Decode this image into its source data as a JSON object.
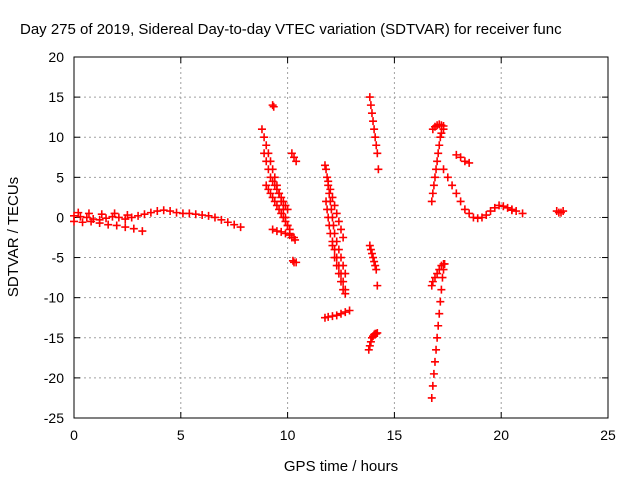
{
  "chart_data": {
    "type": "scatter",
    "title": "Day 275 of 2019, Sidereal Day-to-day VTEC variation (SDTVAR) for receiver func",
    "xlabel": "GPS time / hours",
    "ylabel": "SDTVAR / TECUs",
    "xlim": [
      0,
      25
    ],
    "ylim": [
      -25,
      20
    ],
    "xticks": [
      "0",
      "5",
      "10",
      "15",
      "20",
      "25"
    ],
    "yticks": [
      "-25",
      "-20",
      "-15",
      "-10",
      "-5",
      "0",
      "5",
      "10",
      "15",
      "20"
    ],
    "grid": true,
    "marker": "plus",
    "color": "#ff0000",
    "series": [
      {
        "x": [
          0.0,
          0.3,
          0.6,
          0.9,
          1.2,
          1.5,
          1.8,
          2.1,
          2.4,
          2.7,
          3.0,
          3.3,
          3.6,
          3.9,
          4.2,
          4.5,
          4.8,
          5.1,
          5.4,
          5.7,
          6.0,
          6.3,
          6.6,
          6.9,
          7.2,
          7.5,
          7.8,
          0.0,
          0.4,
          0.8,
          1.2,
          1.6,
          2.0,
          2.4,
          2.8,
          3.2,
          0.2,
          0.7,
          1.3,
          1.9,
          2.5,
          8.8,
          8.9,
          9.0,
          9.1,
          9.2,
          9.3,
          9.4,
          9.5,
          9.6,
          9.7,
          9.8,
          9.9,
          10.0,
          10.1,
          10.2,
          8.9,
          9.0,
          9.1,
          9.2,
          9.3,
          9.4,
          9.5,
          9.6,
          9.7,
          9.8,
          9.9,
          10.0,
          9.0,
          9.1,
          9.2,
          9.3,
          9.4,
          9.5,
          9.6,
          9.7,
          9.8,
          9.9,
          10.0,
          10.1,
          9.3,
          9.5,
          9.7,
          9.9,
          10.1,
          10.3,
          10.2,
          10.3,
          10.4,
          10.35,
          10.25,
          10.3,
          10.4,
          9.3,
          9.35,
          11.75,
          11.8,
          11.85,
          11.9,
          11.95,
          12.0,
          12.05,
          12.1,
          12.15,
          12.2,
          12.3,
          12.4,
          12.5,
          12.6,
          12.7,
          11.8,
          11.85,
          11.9,
          11.95,
          12.0,
          12.1,
          12.2,
          12.3,
          12.4,
          12.5,
          12.6,
          12.7,
          11.9,
          12.0,
          12.1,
          12.2,
          12.3,
          12.4,
          12.5,
          12.6,
          12.1,
          12.2,
          12.3,
          12.4,
          12.5,
          12.6,
          12.7,
          11.75,
          11.9,
          12.1,
          12.3,
          12.5,
          12.7,
          12.9,
          13.85,
          13.9,
          13.95,
          14.0,
          14.05,
          14.1,
          14.15,
          14.2,
          14.25,
          13.85,
          13.9,
          13.95,
          14.0,
          14.05,
          14.1,
          14.15,
          13.8,
          13.85,
          13.9,
          13.95,
          14.0,
          14.05,
          14.1,
          14.15,
          14.2,
          14.2,
          16.75,
          16.8,
          16.85,
          16.9,
          16.95,
          17.0,
          17.05,
          17.1,
          17.15,
          17.2,
          17.3,
          16.8,
          16.9,
          17.0,
          17.1,
          17.2,
          17.3,
          16.75,
          16.8,
          16.85,
          16.9,
          16.95,
          17.0,
          17.05,
          17.1,
          17.15,
          17.2,
          17.25,
          17.3,
          17.35,
          16.75,
          16.8,
          16.9,
          17.0,
          17.1,
          17.2,
          17.3,
          17.3,
          17.5,
          17.7,
          17.9,
          18.1,
          18.3,
          18.5,
          18.7,
          18.9,
          19.1,
          19.3,
          19.5,
          19.7,
          19.9,
          20.1,
          20.3,
          20.5,
          20.7,
          17.9,
          18.1,
          18.3,
          18.5,
          20.5,
          21.0,
          22.6,
          22.7,
          22.8,
          22.9
        ],
        "y": [
          0.2,
          0.1,
          0.0,
          -0.2,
          -0.3,
          -0.1,
          0.1,
          0.0,
          -0.2,
          0.0,
          0.2,
          0.4,
          0.6,
          0.8,
          0.9,
          0.8,
          0.6,
          0.5,
          0.5,
          0.4,
          0.3,
          0.2,
          0.0,
          -0.3,
          -0.6,
          -0.9,
          -1.2,
          -0.5,
          -0.6,
          -0.5,
          -0.7,
          -0.9,
          -1.0,
          -1.2,
          -1.4,
          -1.7,
          0.6,
          0.5,
          0.4,
          0.5,
          0.3,
          11.0,
          10.0,
          9.0,
          8.0,
          7.0,
          6.0,
          5.0,
          4.0,
          3.0,
          2.0,
          1.0,
          0.0,
          -1.0,
          -2.0,
          -2.5,
          8.0,
          7.0,
          6.0,
          5.0,
          4.5,
          4.0,
          3.5,
          3.0,
          2.5,
          2.0,
          1.5,
          1.0,
          4.0,
          3.5,
          3.0,
          2.5,
          2.0,
          1.5,
          1.0,
          0.5,
          0.0,
          -0.5,
          -1.0,
          -1.5,
          -1.5,
          -1.7,
          -1.8,
          -2.0,
          -2.2,
          -2.5,
          8.0,
          7.5,
          7.0,
          -2.8,
          -5.4,
          -5.6,
          -5.6,
          14.0,
          13.8,
          6.5,
          6.0,
          5.0,
          4.0,
          3.0,
          2.0,
          1.0,
          0.0,
          -1.0,
          -2.0,
          -3.0,
          -4.0,
          -5.0,
          -6.0,
          -7.0,
          2.0,
          1.0,
          0.0,
          -1.0,
          -2.0,
          -3.5,
          -5.0,
          -6.0,
          -7.0,
          -8.0,
          -9.0,
          -9.5,
          4.5,
          3.5,
          2.5,
          1.5,
          0.5,
          -0.5,
          -1.5,
          -2.5,
          -3.0,
          -4.0,
          -5.0,
          -6.0,
          -7.0,
          -8.0,
          -9.0,
          -12.5,
          -12.4,
          -12.3,
          -12.2,
          -12.0,
          -11.8,
          -11.6,
          15.0,
          14.0,
          13.0,
          12.0,
          11.0,
          10.0,
          9.0,
          8.0,
          6.0,
          -3.5,
          -4.0,
          -4.5,
          -5.0,
          -5.5,
          -6.0,
          -6.5,
          -16.5,
          -16.0,
          -15.5,
          -15.0,
          -14.8,
          -14.6,
          -14.5,
          -14.5,
          -14.4,
          -8.5,
          2.0,
          3.0,
          4.0,
          5.0,
          6.0,
          7.0,
          8.0,
          9.0,
          10.0,
          10.5,
          11.0,
          11.0,
          11.3,
          11.5,
          11.6,
          11.5,
          11.4,
          -22.5,
          -21.0,
          -19.5,
          -18.0,
          -16.5,
          -15.0,
          -13.5,
          -12.0,
          -10.5,
          -9.0,
          -7.5,
          -6.5,
          -5.8,
          -8.5,
          -8.0,
          -7.5,
          -7.0,
          -6.5,
          -6.0,
          -5.8,
          6.0,
          5.0,
          4.0,
          3.0,
          2.0,
          1.0,
          0.5,
          0.0,
          -0.1,
          0.0,
          0.3,
          0.8,
          1.2,
          1.5,
          1.4,
          1.2,
          0.9,
          0.8,
          7.8,
          7.5,
          7.0,
          6.8,
          1.0,
          0.5,
          0.8,
          0.6,
          0.6,
          0.8
        ]
      }
    ]
  }
}
